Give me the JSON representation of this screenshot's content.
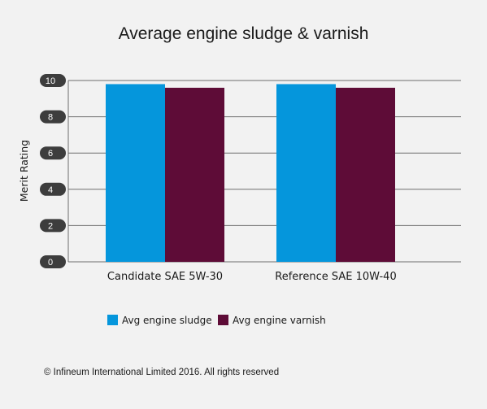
{
  "chart_data": {
    "type": "bar",
    "title": "Average engine sludge & varnish",
    "ylabel": "Merit Rating",
    "xlabel": "",
    "ylim": [
      0,
      10
    ],
    "yticks": [
      0,
      2,
      4,
      6,
      8,
      10
    ],
    "categories": [
      "Candidate SAE 5W-30",
      "Reference SAE 10W-40"
    ],
    "series": [
      {
        "name": "Avg engine sludge",
        "color": "#0596dc",
        "values": [
          9.8,
          9.8
        ]
      },
      {
        "name": "Avg engine varnish",
        "color": "#5e0c37",
        "values": [
          9.6,
          9.6
        ]
      }
    ],
    "grid": true,
    "legend_position": "bottom-left"
  },
  "footer": {
    "copyright": "© Infineum International Limited 2016. All rights reserved"
  }
}
